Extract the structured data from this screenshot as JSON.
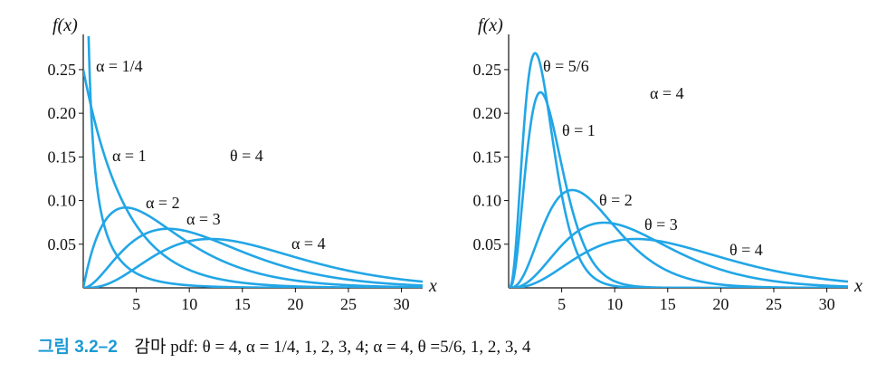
{
  "caption": {
    "figure_label": "그림 3.2–2",
    "text": "감마 pdf: θ = 4,  α = 1/4,  1,  2,  3,  4;  α = 4,  θ =5/6,  1,  2,  3,  4"
  },
  "colors": {
    "curve": "#22a6e6",
    "axis": "#111111"
  },
  "chart_data": [
    {
      "type": "line",
      "ylabel": "f(x)",
      "xlabel": "x",
      "xlim": [
        0,
        32
      ],
      "ylim": [
        0,
        0.28
      ],
      "xticks": [
        5,
        10,
        15,
        20,
        25,
        30
      ],
      "xtick_labels": [
        "5",
        "10",
        "15",
        "20",
        "25",
        "30"
      ],
      "yticks": [
        0.05,
        0.1,
        0.15,
        0.2,
        0.25
      ],
      "ytick_labels": [
        "0.05",
        "0.10",
        "0.15",
        "0.20",
        "0.25"
      ],
      "fixed_label": "θ = 4",
      "series": [
        {
          "name": "α = 1/4",
          "alpha": 0.25,
          "theta": 4
        },
        {
          "name": "α = 1",
          "alpha": 1,
          "theta": 4
        },
        {
          "name": "α = 2",
          "alpha": 2,
          "theta": 4
        },
        {
          "name": "α = 3",
          "alpha": 3,
          "theta": 4
        },
        {
          "name": "α = 4",
          "alpha": 4,
          "theta": 4
        }
      ]
    },
    {
      "type": "line",
      "ylabel": "f(x)",
      "xlabel": "x",
      "xlim": [
        0,
        32
      ],
      "ylim": [
        0,
        0.28
      ],
      "xticks": [
        5,
        10,
        15,
        20,
        25,
        30
      ],
      "xtick_labels": [
        "5",
        "10",
        "15",
        "20",
        "25",
        "30"
      ],
      "yticks": [
        0.05,
        0.1,
        0.15,
        0.2,
        0.25
      ],
      "ytick_labels": [
        "0.05",
        "0.10",
        "0.15",
        "0.20",
        "0.25"
      ],
      "fixed_label": "α = 4",
      "series": [
        {
          "name": "θ = 5/6",
          "alpha": 4,
          "theta": 0.8333
        },
        {
          "name": "θ = 1",
          "alpha": 4,
          "theta": 1
        },
        {
          "name": "θ = 2",
          "alpha": 4,
          "theta": 2
        },
        {
          "name": "θ = 3",
          "alpha": 4,
          "theta": 3
        },
        {
          "name": "θ = 4",
          "alpha": 4,
          "theta": 4
        }
      ]
    }
  ]
}
